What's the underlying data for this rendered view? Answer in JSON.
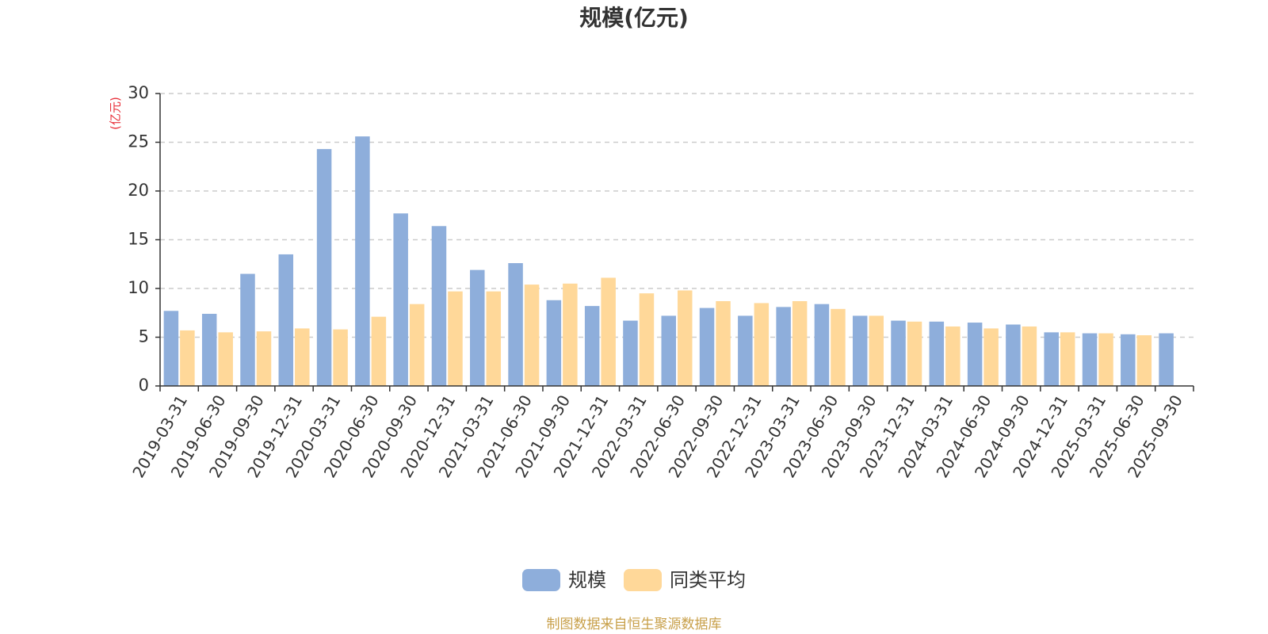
{
  "chart_data": {
    "type": "bar",
    "title": "规模(亿元)",
    "ylabel": "(亿元)",
    "ylim": [
      0,
      30
    ],
    "yticks": [
      0,
      5,
      10,
      15,
      20,
      25,
      30
    ],
    "grid": true,
    "legend_position": "bottom",
    "categories": [
      "2019-03-31",
      "2019-06-30",
      "2019-09-30",
      "2019-12-31",
      "2020-03-31",
      "2020-06-30",
      "2020-09-30",
      "2020-12-31",
      "2021-03-31",
      "2021-06-30",
      "2021-09-30",
      "2021-12-31",
      "2022-03-31",
      "2022-06-30",
      "2022-09-30",
      "2022-12-31",
      "2023-03-31",
      "2023-06-30",
      "2023-09-30",
      "2023-12-31",
      "2024-03-31",
      "2024-06-30",
      "2024-09-30",
      "2024-12-31",
      "2025-03-31",
      "2025-06-30",
      "2025-09-30"
    ],
    "series": [
      {
        "name": "规模",
        "color": "#8eaedb",
        "values": [
          7.7,
          7.4,
          11.5,
          13.5,
          24.3,
          25.6,
          17.7,
          16.4,
          11.9,
          12.6,
          8.8,
          8.2,
          6.7,
          7.2,
          8.0,
          7.2,
          8.1,
          8.4,
          7.2,
          6.7,
          6.6,
          6.5,
          6.3,
          5.5,
          5.4,
          5.3,
          5.4
        ]
      },
      {
        "name": "同类平均",
        "color": "#ffd899",
        "values": [
          5.7,
          5.5,
          5.6,
          5.9,
          5.8,
          7.1,
          8.4,
          9.7,
          9.7,
          10.4,
          10.5,
          11.1,
          9.5,
          9.8,
          8.7,
          8.5,
          8.7,
          7.9,
          7.2,
          6.6,
          6.1,
          5.9,
          6.1,
          5.5,
          5.4,
          5.2,
          null
        ]
      }
    ]
  },
  "source_note": "制图数据来自恒生聚源数据库"
}
